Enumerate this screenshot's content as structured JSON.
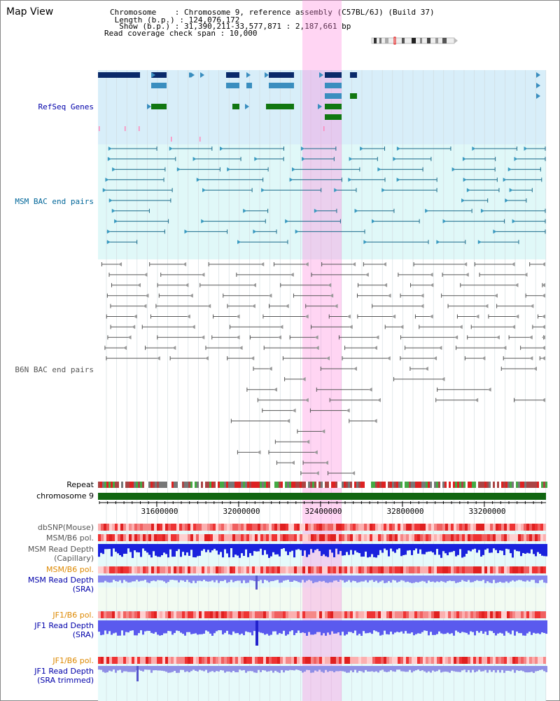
{
  "window": {
    "title": "Map View"
  },
  "info": {
    "chromosome": "Chromosome    : Chromosome 9, reference assembly (C57BL/6J) (Build 37)",
    "length": " Length (b.p.) : 124,076,172",
    "show": "  Show (b.p.) : 31,390,211-33,577,871 : 2,187,661 bp",
    "coverage": "Read coverage check span : 10,000"
  },
  "tracks": {
    "refseq": {
      "label": "RefSeq Genes",
      "color": "#0000aa"
    },
    "msm_bac": {
      "label": "MSM BAC end pairs",
      "color": "#006699"
    },
    "b6n_bac": {
      "label": "B6N BAC end pairs",
      "color": "#555555"
    },
    "repeat": {
      "label": "Repeat"
    },
    "chromosome": {
      "label": "chromosome 9"
    },
    "dbsnp": {
      "label": "dbSNP(Mouse)"
    },
    "msm_pol1": {
      "label": "MSM/B6 pol."
    },
    "msm_cap": {
      "line1": "MSM Read Depth",
      "line2": "(Capillary)"
    },
    "msm_pol2": {
      "label": "MSM/B6 pol."
    },
    "msm_sra": {
      "line1": "MSM Read Depth",
      "line2": "(SRA)"
    },
    "jf1_pol1": {
      "label": "JF1/B6 pol."
    },
    "jf1_sra": {
      "line1": "JF1 Read Depth",
      "line2": "(SRA)"
    },
    "jf1_pol2": {
      "label": "JF1/B6 pol."
    },
    "jf1_trim": {
      "line1": "JF1 Read Depth",
      "line2": "(SRA trimmed)"
    }
  },
  "ruler": {
    "ticks": [
      "31600000",
      "32000000",
      "32400000",
      "32800000",
      "33200000"
    ]
  },
  "colors": {
    "highlight": "#ff88dd",
    "refseq_bg": "#d8eef9",
    "msm_bg": "#e0f8f8",
    "gene_dark": "#0a2a6a",
    "gene_mid": "#3a8ebf",
    "gene_green": "#117711",
    "label_orange": "#dd8800",
    "label_blue": "#0000aa",
    "label_gray": "#555555"
  }
}
